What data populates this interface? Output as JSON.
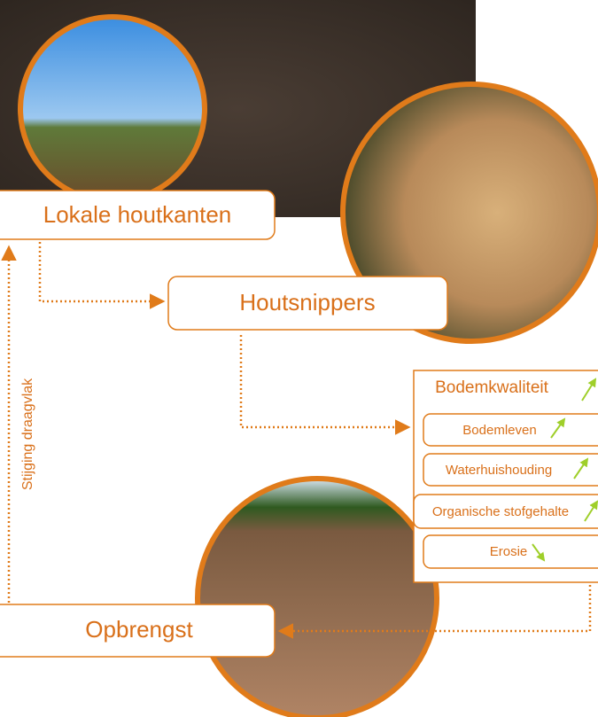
{
  "nodes": [
    {
      "label": "Lokale houtkanten"
    },
    {
      "label": "Houtsnippers"
    },
    {
      "label": "Opbrengst"
    }
  ],
  "panel": {
    "title": "Bodemkwaliteit",
    "items": [
      "Bodemleven",
      "Waterhuishouding",
      "Organische stofgehalte",
      "Erosie"
    ]
  },
  "side_label": "Stijging draagvlak"
}
